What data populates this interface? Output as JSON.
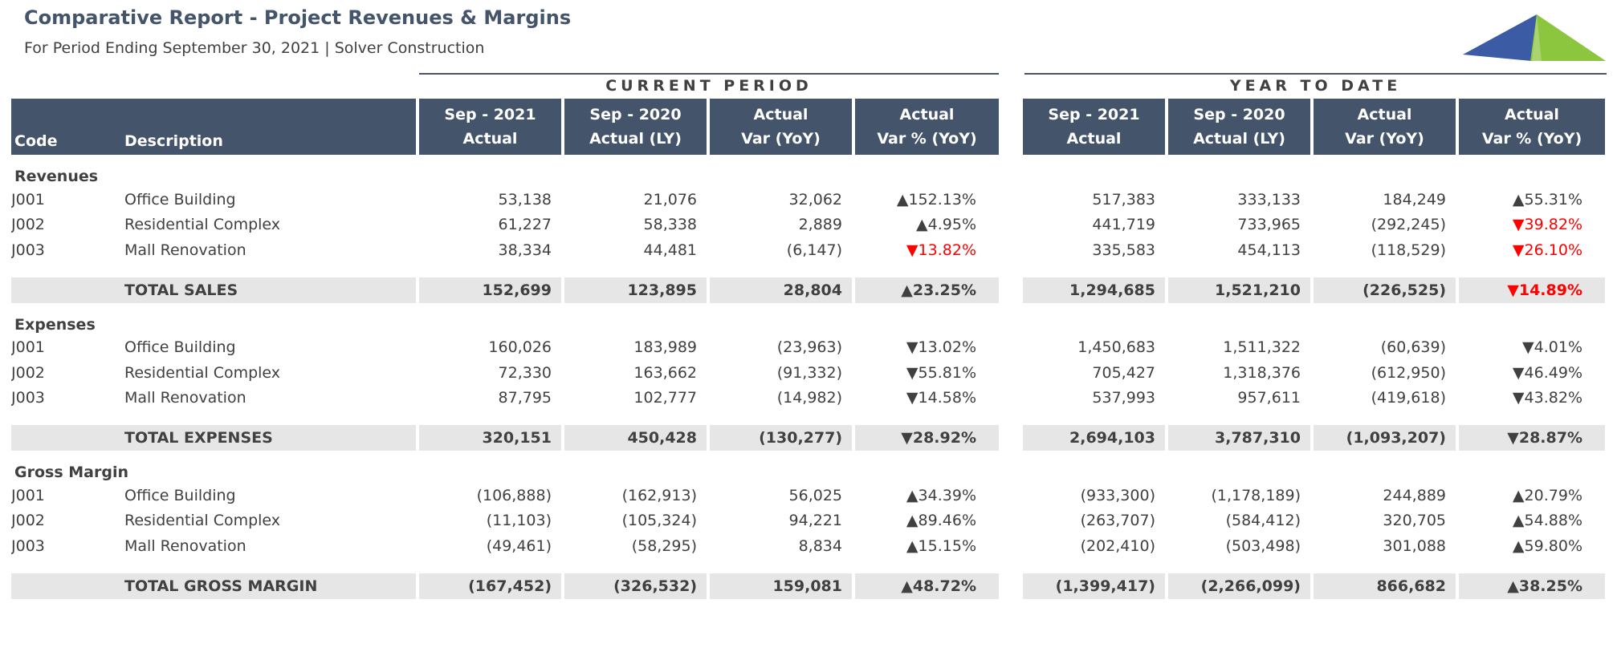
{
  "header": {
    "title": "Comparative Report - Project Revenues & Margins",
    "subtitle": "For Period Ending September 30, 2021 | Solver Construction"
  },
  "sections": {
    "current": "CURRENT PERIOD",
    "ytd": "YEAR TO DATE"
  },
  "columns": {
    "code": "Code",
    "description": "Description",
    "c1_l1": "Sep - 2021",
    "c1_l2": "Actual",
    "c2_l1": "Sep - 2020",
    "c2_l2": "Actual (LY)",
    "c3_l1": "Actual",
    "c3_l2": "Var (YoY)",
    "c4_l1": "Actual",
    "c4_l2": "Var % (YoY)"
  },
  "groups": [
    {
      "label": "Revenues",
      "rows": [
        {
          "code": "J001",
          "desc": "Office Building",
          "cp": [
            "53,138",
            "21,076",
            "32,062",
            "152.13%"
          ],
          "cp_dir": "up",
          "ytd": [
            "517,383",
            "333,133",
            "184,249",
            "55.31%"
          ],
          "ytd_dir": "up"
        },
        {
          "code": "J002",
          "desc": "Residential Complex",
          "cp": [
            "61,227",
            "58,338",
            "2,889",
            "4.95%"
          ],
          "cp_dir": "up",
          "ytd": [
            "441,719",
            "733,965",
            "(292,245)",
            "39.82%"
          ],
          "ytd_dir": "down-red"
        },
        {
          "code": "J003",
          "desc": "Mall Renovation",
          "cp": [
            "38,334",
            "44,481",
            "(6,147)",
            "13.82%"
          ],
          "cp_dir": "down-red",
          "ytd": [
            "335,583",
            "454,113",
            "(118,529)",
            "26.10%"
          ],
          "ytd_dir": "down-red"
        }
      ],
      "total": {
        "label": "TOTAL SALES",
        "cp": [
          "152,699",
          "123,895",
          "28,804",
          "23.25%"
        ],
        "cp_dir": "up",
        "ytd": [
          "1,294,685",
          "1,521,210",
          "(226,525)",
          "14.89%"
        ],
        "ytd_dir": "down-red"
      }
    },
    {
      "label": "Expenses",
      "rows": [
        {
          "code": "J001",
          "desc": "Office Building",
          "cp": [
            "160,026",
            "183,989",
            "(23,963)",
            "13.02%"
          ],
          "cp_dir": "down",
          "ytd": [
            "1,450,683",
            "1,511,322",
            "(60,639)",
            "4.01%"
          ],
          "ytd_dir": "down"
        },
        {
          "code": "J002",
          "desc": "Residential Complex",
          "cp": [
            "72,330",
            "163,662",
            "(91,332)",
            "55.81%"
          ],
          "cp_dir": "down",
          "ytd": [
            "705,427",
            "1,318,376",
            "(612,950)",
            "46.49%"
          ],
          "ytd_dir": "down"
        },
        {
          "code": "J003",
          "desc": "Mall Renovation",
          "cp": [
            "87,795",
            "102,777",
            "(14,982)",
            "14.58%"
          ],
          "cp_dir": "down",
          "ytd": [
            "537,993",
            "957,611",
            "(419,618)",
            "43.82%"
          ],
          "ytd_dir": "down"
        }
      ],
      "total": {
        "label": "TOTAL EXPENSES",
        "cp": [
          "320,151",
          "450,428",
          "(130,277)",
          "28.92%"
        ],
        "cp_dir": "down",
        "ytd": [
          "2,694,103",
          "3,787,310",
          "(1,093,207)",
          "28.87%"
        ],
        "ytd_dir": "down"
      }
    },
    {
      "label": "Gross Margin",
      "rows": [
        {
          "code": "J001",
          "desc": "Office Building",
          "cp": [
            "(106,888)",
            "(162,913)",
            "56,025",
            "34.39%"
          ],
          "cp_dir": "up",
          "ytd": [
            "(933,300)",
            "(1,178,189)",
            "244,889",
            "20.79%"
          ],
          "ytd_dir": "up"
        },
        {
          "code": "J002",
          "desc": "Residential Complex",
          "cp": [
            "(11,103)",
            "(105,324)",
            "94,221",
            "89.46%"
          ],
          "cp_dir": "up",
          "ytd": [
            "(263,707)",
            "(584,412)",
            "320,705",
            "54.88%"
          ],
          "ytd_dir": "up"
        },
        {
          "code": "J003",
          "desc": "Mall Renovation",
          "cp": [
            "(49,461)",
            "(58,295)",
            "8,834",
            "15.15%"
          ],
          "cp_dir": "up",
          "ytd": [
            "(202,410)",
            "(503,498)",
            "301,088",
            "59.80%"
          ],
          "ytd_dir": "up"
        }
      ],
      "total": {
        "label": "TOTAL GROSS MARGIN",
        "cp": [
          "(167,452)",
          "(326,532)",
          "159,081",
          "48.72%"
        ],
        "cp_dir": "up",
        "ytd": [
          "(1,399,417)",
          "(2,266,099)",
          "866,682",
          "38.25%"
        ],
        "ytd_dir": "up"
      }
    }
  ],
  "colors": {
    "header_bg": "#44546a",
    "total_bg": "#e7e6e6",
    "negative": "#ff0000",
    "logo_blue": "#3b5ba5",
    "logo_green": "#8cc63f"
  },
  "icons": {
    "logo": "solver-logo",
    "increase": "triangle-up",
    "decrease": "triangle-down"
  }
}
